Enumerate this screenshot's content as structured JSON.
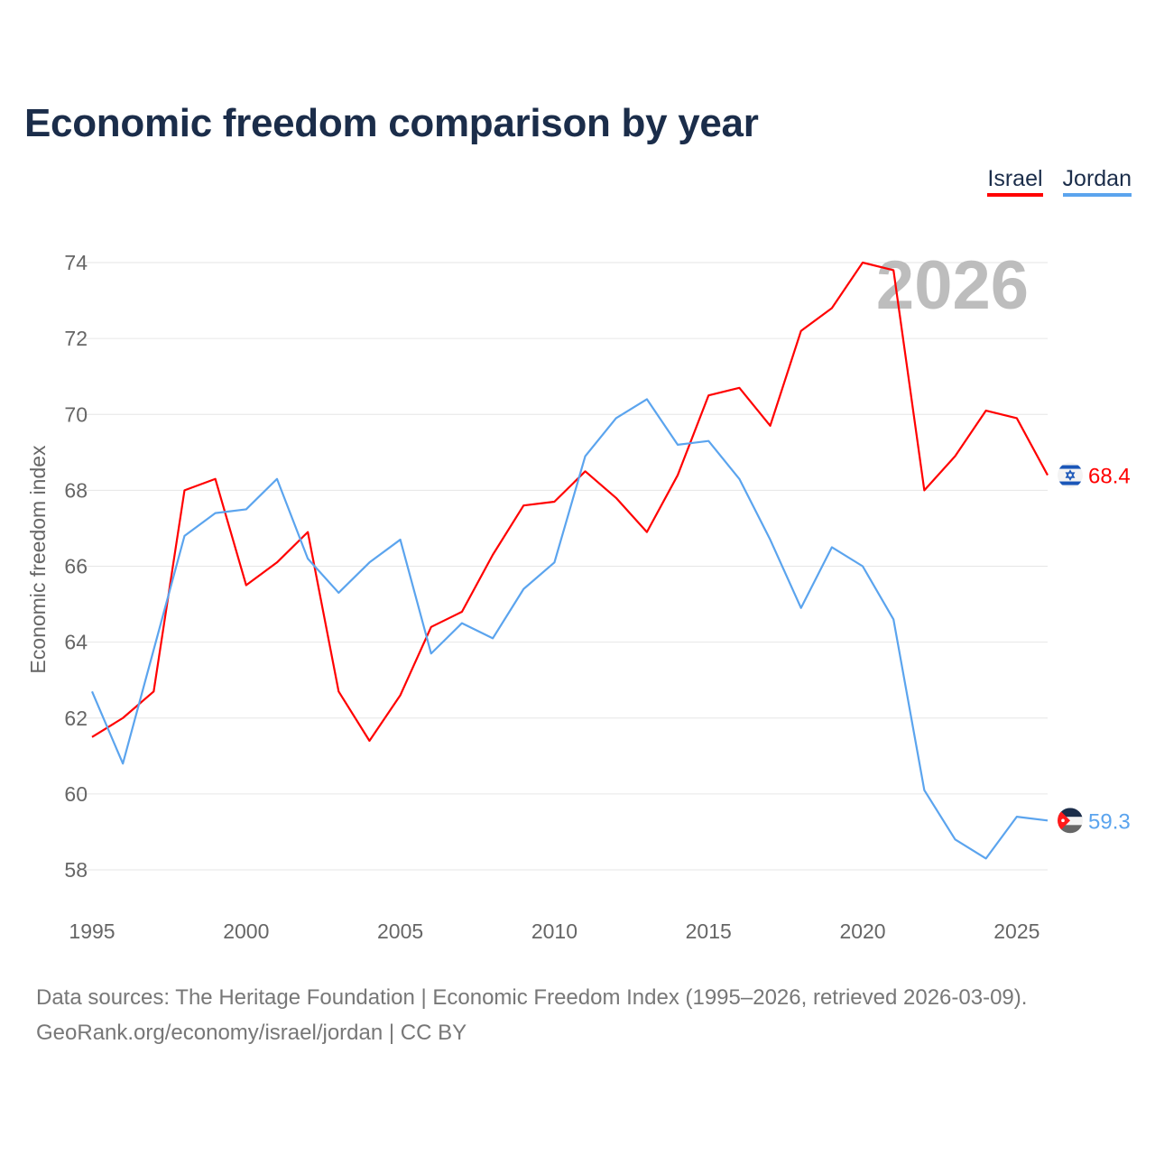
{
  "header": {
    "title": "Economic freedom comparison by year"
  },
  "footer": {
    "line1": "Data sources: The Heritage Foundation | Economic Freedom Index (1995–2026, retrieved 2026-03-09).",
    "line2": "GeoRank.org/economy/israel/jordan | CC BY"
  },
  "chart_data": {
    "type": "line",
    "title": "Economic freedom comparison by year",
    "xlabel": "",
    "ylabel": "Economic freedom index",
    "year_watermark": "2026",
    "x": [
      1995,
      1996,
      1997,
      1998,
      1999,
      2000,
      2001,
      2002,
      2003,
      2004,
      2005,
      2006,
      2007,
      2008,
      2009,
      2010,
      2011,
      2012,
      2013,
      2014,
      2015,
      2016,
      2017,
      2018,
      2019,
      2020,
      2021,
      2022,
      2023,
      2024,
      2025,
      2026
    ],
    "xticks": [
      "1995",
      "2000",
      "2005",
      "2010",
      "2015",
      "2020",
      "2025"
    ],
    "yticks": [
      "58",
      "60",
      "62",
      "64",
      "66",
      "68",
      "70",
      "72",
      "74"
    ],
    "ylim": [
      58,
      74
    ],
    "xlim": [
      1995,
      2026
    ],
    "grid": true,
    "legend_position": "top-right",
    "series": [
      {
        "name": "Israel",
        "color": "#ff0000",
        "end_label": "68.4",
        "flag": "israel-flag",
        "values": [
          61.5,
          62.0,
          62.7,
          68.0,
          68.3,
          65.5,
          66.1,
          66.9,
          62.7,
          61.4,
          62.6,
          64.4,
          64.8,
          66.3,
          67.6,
          67.7,
          68.5,
          67.8,
          66.9,
          68.4,
          70.5,
          70.7,
          69.7,
          72.2,
          72.8,
          74.0,
          73.8,
          68.0,
          68.9,
          70.1,
          69.9,
          68.4
        ]
      },
      {
        "name": "Jordan",
        "color": "#5ba4ee",
        "end_label": "59.3",
        "flag": "jordan-flag",
        "values": [
          62.7,
          60.8,
          63.8,
          66.8,
          67.4,
          67.5,
          68.3,
          66.2,
          65.3,
          66.1,
          66.7,
          63.7,
          64.5,
          64.1,
          65.4,
          66.1,
          68.9,
          69.9,
          70.4,
          69.2,
          69.3,
          68.3,
          66.7,
          64.9,
          66.5,
          66.0,
          64.6,
          60.1,
          58.8,
          58.3,
          59.4,
          59.3
        ]
      }
    ]
  }
}
